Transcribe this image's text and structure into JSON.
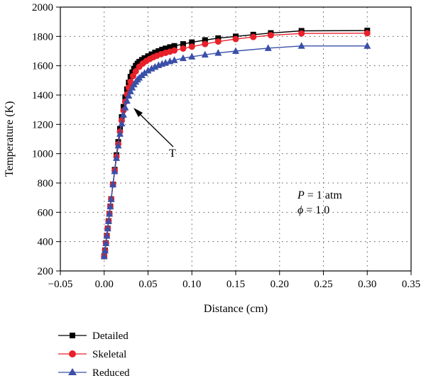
{
  "chart_data": {
    "type": "line",
    "xlabel": "Distance (cm)",
    "ylabel": "Temperature (K)",
    "xlim": [
      -0.05,
      0.35
    ],
    "ylim": [
      200,
      2000
    ],
    "x_ticks": [
      "−0.05",
      "0.00",
      "0.05",
      "0.10",
      "0.15",
      "0.20",
      "0.25",
      "0.30",
      "0.35"
    ],
    "y_ticks": [
      "200",
      "400",
      "600",
      "800",
      "1000",
      "1200",
      "1400",
      "1600",
      "1800",
      "2000"
    ],
    "grid": true,
    "legend_position": "bottom-left, below plot",
    "annotations": {
      "arrow_label": "T",
      "conditions_line1_var": "P",
      "conditions_line1_rest": " = 1 atm",
      "conditions_line2_var": "ϕ",
      "conditions_line2_rest": " = 1.0"
    },
    "series": [
      {
        "name": "Detailed",
        "color": "#000000",
        "marker": "square",
        "x": [
          0.0,
          0.001,
          0.002,
          0.003,
          0.004,
          0.005,
          0.006,
          0.007,
          0.008,
          0.01,
          0.012,
          0.014,
          0.016,
          0.018,
          0.02,
          0.022,
          0.024,
          0.026,
          0.028,
          0.03,
          0.032,
          0.034,
          0.036,
          0.038,
          0.04,
          0.043,
          0.046,
          0.05,
          0.054,
          0.058,
          0.062,
          0.066,
          0.07,
          0.075,
          0.08,
          0.09,
          0.1,
          0.115,
          0.13,
          0.15,
          0.17,
          0.19,
          0.225,
          0.3
        ],
        "y": [
          300,
          340,
          390,
          440,
          490,
          540,
          590,
          640,
          690,
          790,
          890,
          990,
          1080,
          1170,
          1250,
          1320,
          1385,
          1440,
          1485,
          1525,
          1555,
          1580,
          1600,
          1615,
          1627,
          1640,
          1652,
          1665,
          1678,
          1690,
          1700,
          1710,
          1718,
          1727,
          1735,
          1748,
          1760,
          1775,
          1788,
          1800,
          1812,
          1823,
          1838,
          1840
        ]
      },
      {
        "name": "Skeletal",
        "color": "#e8202a",
        "marker": "circle",
        "x": [
          0.0,
          0.001,
          0.002,
          0.003,
          0.004,
          0.005,
          0.006,
          0.007,
          0.008,
          0.01,
          0.012,
          0.014,
          0.016,
          0.018,
          0.02,
          0.022,
          0.024,
          0.026,
          0.028,
          0.03,
          0.033,
          0.036,
          0.04,
          0.044,
          0.048,
          0.052,
          0.056,
          0.06,
          0.065,
          0.07,
          0.075,
          0.08,
          0.09,
          0.1,
          0.115,
          0.13,
          0.15,
          0.17,
          0.19,
          0.225,
          0.3
        ],
        "y": [
          300,
          340,
          390,
          440,
          490,
          540,
          590,
          640,
          690,
          790,
          885,
          980,
          1065,
          1150,
          1225,
          1295,
          1355,
          1405,
          1450,
          1490,
          1530,
          1562,
          1593,
          1615,
          1632,
          1646,
          1658,
          1668,
          1679,
          1688,
          1696,
          1704,
          1717,
          1730,
          1748,
          1765,
          1782,
          1796,
          1808,
          1820,
          1822
        ]
      },
      {
        "name": "Reduced",
        "color": "#3a4fa8",
        "marker": "triangle",
        "x": [
          0.0,
          0.001,
          0.002,
          0.003,
          0.004,
          0.005,
          0.006,
          0.007,
          0.008,
          0.01,
          0.012,
          0.014,
          0.016,
          0.018,
          0.02,
          0.022,
          0.024,
          0.026,
          0.028,
          0.03,
          0.032,
          0.034,
          0.036,
          0.038,
          0.04,
          0.043,
          0.046,
          0.05,
          0.054,
          0.058,
          0.062,
          0.066,
          0.07,
          0.075,
          0.08,
          0.09,
          0.1,
          0.115,
          0.13,
          0.15,
          0.187,
          0.225,
          0.3
        ],
        "y": [
          300,
          340,
          390,
          440,
          490,
          540,
          590,
          640,
          690,
          790,
          880,
          970,
          1055,
          1135,
          1205,
          1265,
          1315,
          1360,
          1395,
          1425,
          1450,
          1472,
          1490,
          1505,
          1518,
          1535,
          1550,
          1567,
          1580,
          1592,
          1603,
          1612,
          1620,
          1630,
          1638,
          1651,
          1662,
          1675,
          1687,
          1700,
          1720,
          1735,
          1735
        ]
      }
    ]
  }
}
